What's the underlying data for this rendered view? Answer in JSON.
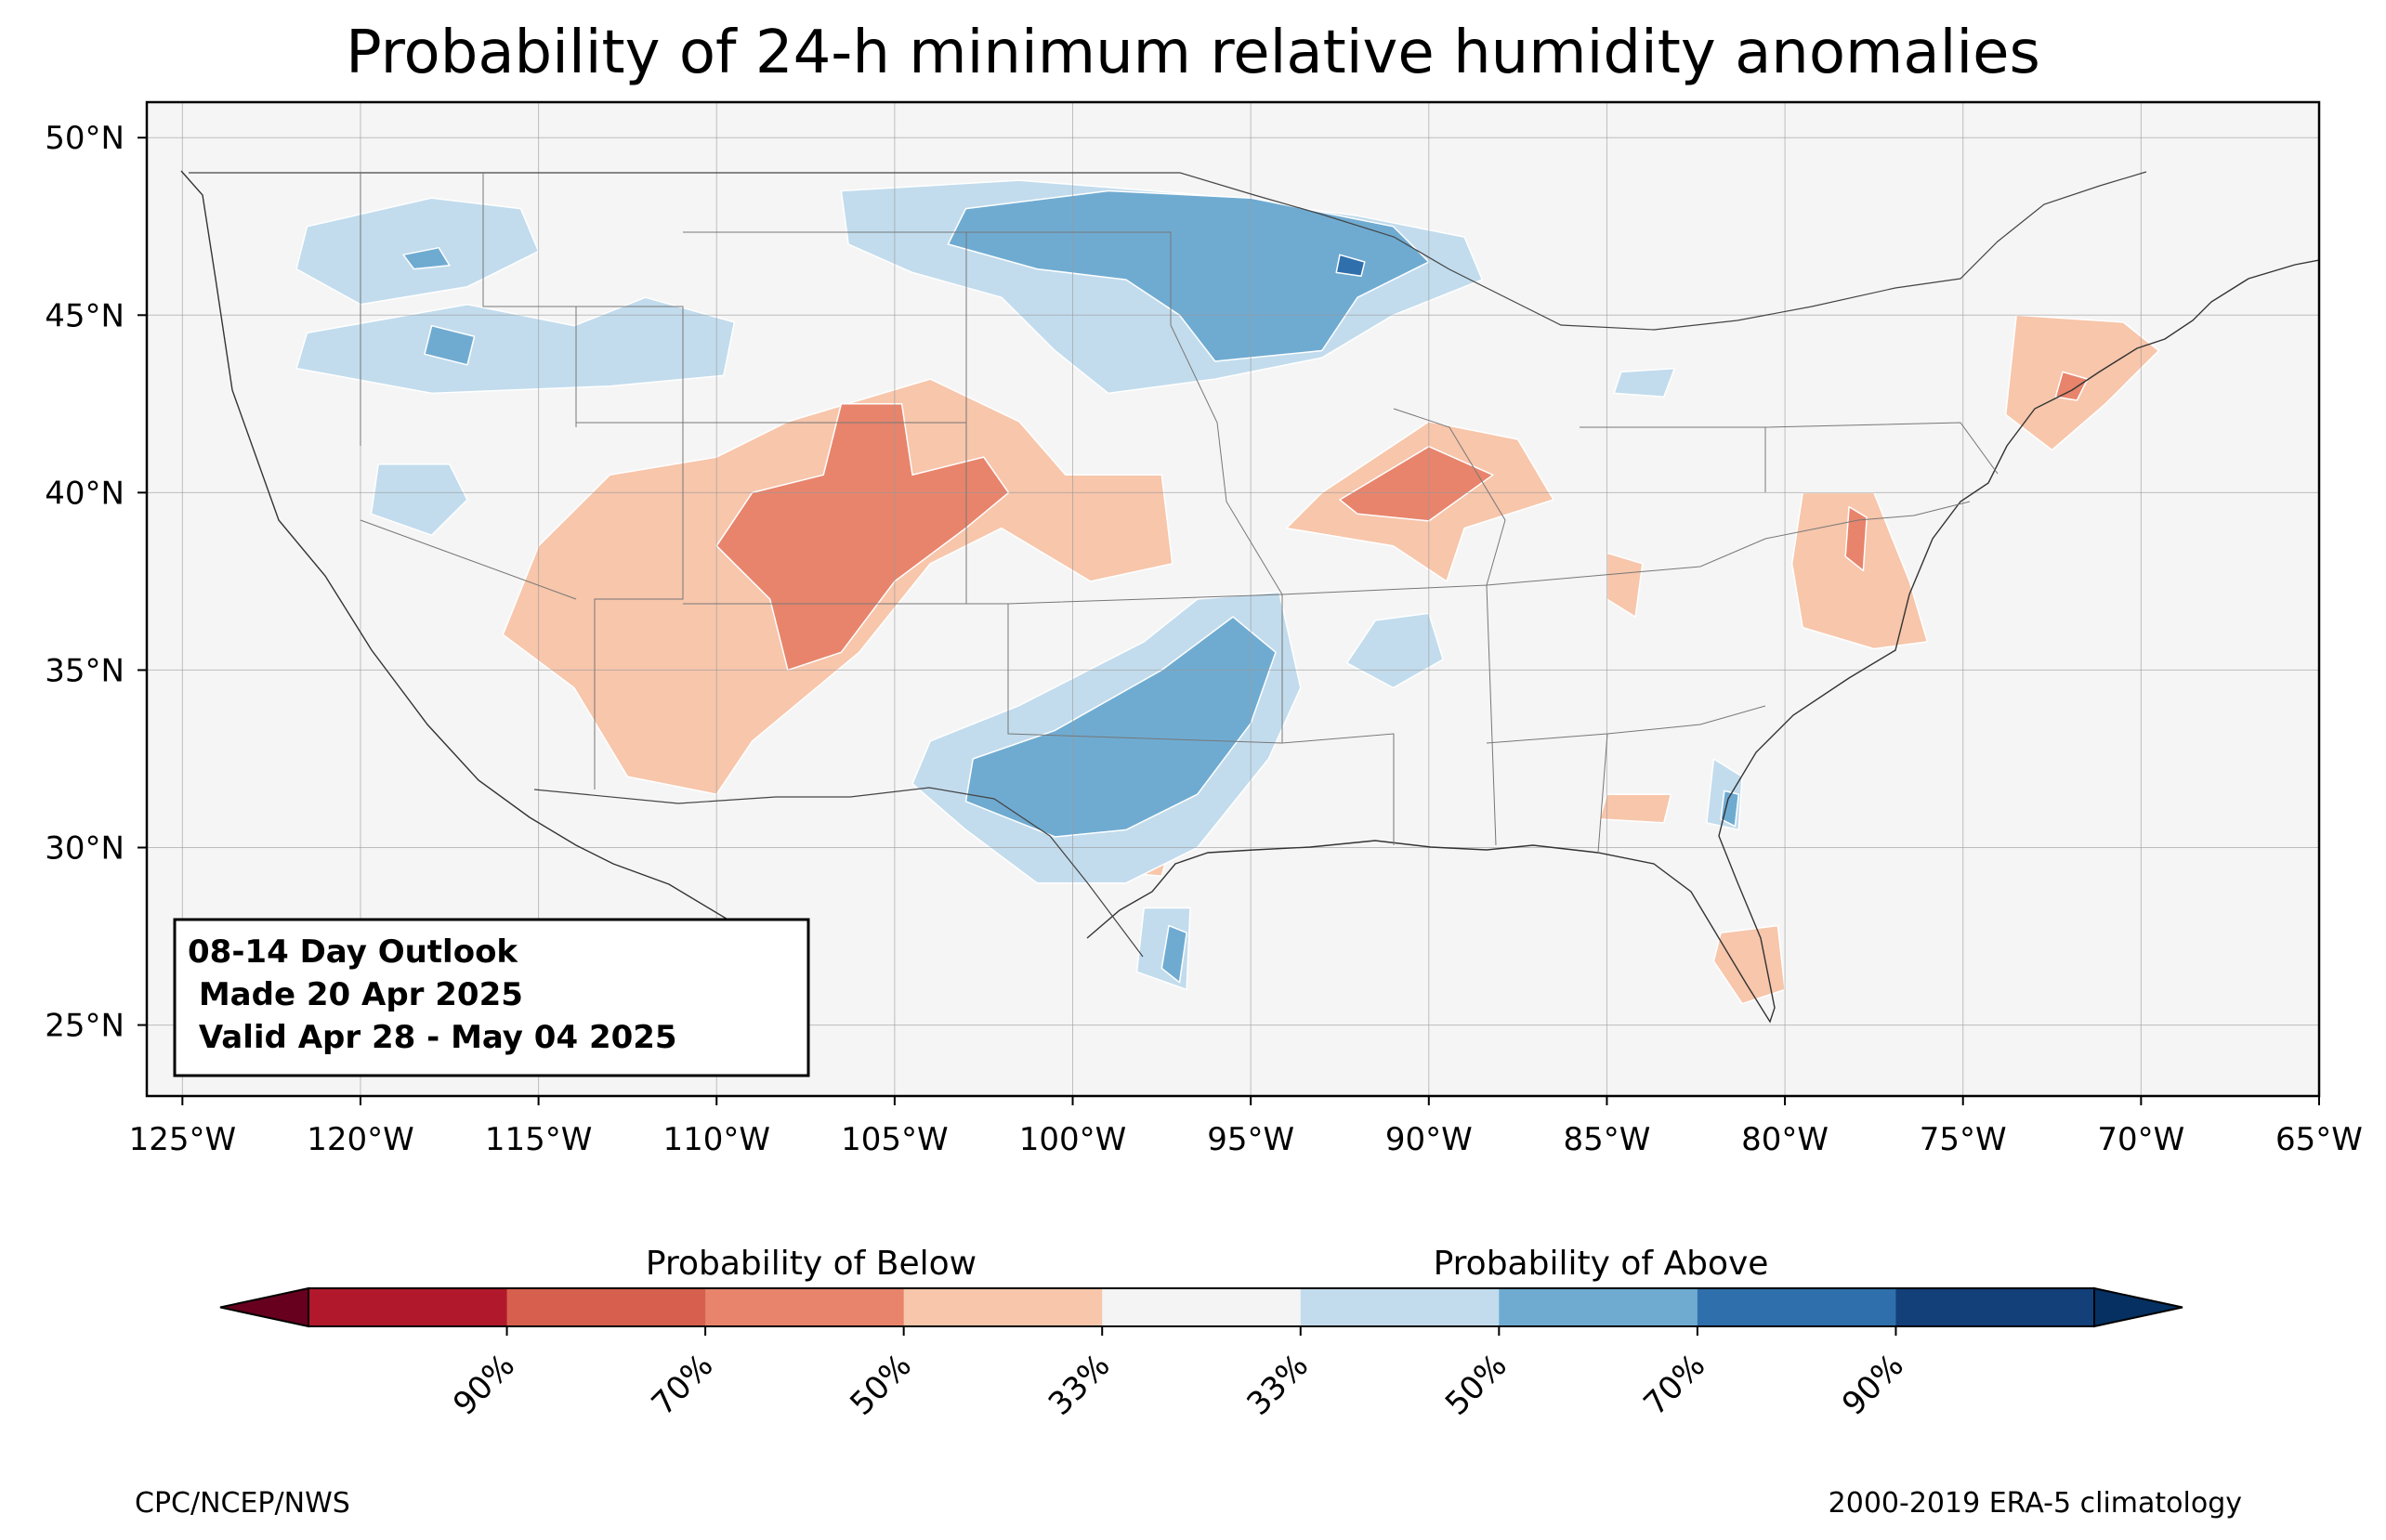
{
  "title": "Probability of 24-h minimum relative humidity anomalies",
  "map": {
    "projection": "PlateCarree",
    "extent": {
      "lon_min": -126,
      "lon_max": -65,
      "lat_min": 23,
      "lat_max": 51
    },
    "background_color": "#f5f5f5",
    "gridlines": true,
    "lat_ticks": [
      {
        "value": 50,
        "label": "50°N"
      },
      {
        "value": 45,
        "label": "45°N"
      },
      {
        "value": 40,
        "label": "40°N"
      },
      {
        "value": 35,
        "label": "35°N"
      },
      {
        "value": 30,
        "label": "30°N"
      },
      {
        "value": 25,
        "label": "25°N"
      }
    ],
    "lon_ticks": [
      {
        "value": -125,
        "label": "125°W"
      },
      {
        "value": -120,
        "label": "120°W"
      },
      {
        "value": -115,
        "label": "115°W"
      },
      {
        "value": -110,
        "label": "110°W"
      },
      {
        "value": -105,
        "label": "105°W"
      },
      {
        "value": -100,
        "label": "100°W"
      },
      {
        "value": -95,
        "label": "95°W"
      },
      {
        "value": -90,
        "label": "90°W"
      },
      {
        "value": -85,
        "label": "85°W"
      },
      {
        "value": -80,
        "label": "80°W"
      },
      {
        "value": -75,
        "label": "75°W"
      },
      {
        "value": -70,
        "label": "70°W"
      },
      {
        "value": -65,
        "label": "65°W"
      }
    ],
    "anomaly_regions": [
      {
        "category": "below-33",
        "color": "#f7c6ab",
        "ring": [
          [
            -108,
            42
          ],
          [
            -104,
            43.2
          ],
          [
            -101.5,
            42
          ],
          [
            -100.2,
            40.5
          ],
          [
            -97.5,
            40.5
          ],
          [
            -97.2,
            38
          ],
          [
            -99.5,
            37.5
          ],
          [
            -102,
            39
          ],
          [
            -104,
            38
          ],
          [
            -106,
            35.5
          ],
          [
            -109,
            33
          ],
          [
            -110,
            31.5
          ],
          [
            -112.5,
            32
          ],
          [
            -114,
            34.5
          ],
          [
            -116,
            36
          ],
          [
            -115,
            38.5
          ],
          [
            -113,
            40.5
          ],
          [
            -110,
            41
          ]
        ]
      },
      {
        "category": "below-50",
        "color": "#e8846c",
        "ring": [
          [
            -106.5,
            42.5
          ],
          [
            -104.8,
            42.5
          ],
          [
            -104.5,
            40.5
          ],
          [
            -102.5,
            41
          ],
          [
            -101.8,
            40
          ],
          [
            -103,
            39
          ],
          [
            -105,
            37.5
          ],
          [
            -106.5,
            35.5
          ],
          [
            -108,
            35
          ],
          [
            -108.5,
            37
          ],
          [
            -110,
            38.5
          ],
          [
            -109,
            40
          ],
          [
            -107,
            40.5
          ]
        ]
      },
      {
        "category": "below-33",
        "color": "#f7c6ab",
        "ring": [
          [
            -93,
            40
          ],
          [
            -90,
            42
          ],
          [
            -87.5,
            41.5
          ],
          [
            -86.5,
            39.8
          ],
          [
            -89,
            39
          ],
          [
            -89.5,
            37.5
          ],
          [
            -91,
            38.5
          ],
          [
            -94,
            39
          ]
        ]
      },
      {
        "category": "below-50",
        "color": "#e8846c",
        "ring": [
          [
            -92.5,
            39.8
          ],
          [
            -90,
            41.3
          ],
          [
            -88.2,
            40.5
          ],
          [
            -90,
            39.2
          ],
          [
            -92,
            39.4
          ]
        ]
      },
      {
        "category": "below-33",
        "color": "#f7c6ab",
        "ring": [
          [
            -73.5,
            45
          ],
          [
            -70.5,
            44.8
          ],
          [
            -69.5,
            44
          ],
          [
            -71,
            42.5
          ],
          [
            -72.5,
            41.2
          ],
          [
            -73.8,
            42.2
          ]
        ]
      },
      {
        "category": "below-50",
        "color": "#e8846c",
        "ring": [
          [
            -72.2,
            43.4
          ],
          [
            -71.5,
            43.2
          ],
          [
            -71.8,
            42.6
          ],
          [
            -72.4,
            42.7
          ]
        ]
      },
      {
        "category": "below-33",
        "color": "#f7c6ab",
        "ring": [
          [
            -79.5,
            40
          ],
          [
            -77.5,
            40
          ],
          [
            -76.5,
            37.5
          ],
          [
            -76,
            35.8
          ],
          [
            -77.5,
            35.6
          ],
          [
            -79.5,
            36.2
          ],
          [
            -79.8,
            38
          ]
        ]
      },
      {
        "category": "below-50",
        "color": "#e8846c",
        "ring": [
          [
            -78.2,
            39.6
          ],
          [
            -77.7,
            39.3
          ],
          [
            -77.8,
            37.8
          ],
          [
            -78.3,
            38.2
          ]
        ]
      },
      {
        "category": "below-33",
        "color": "#f7c6ab",
        "ring": [
          [
            -81.8,
            27.6
          ],
          [
            -80.2,
            27.8
          ],
          [
            -80,
            26
          ],
          [
            -81.2,
            25.6
          ],
          [
            -82,
            26.8
          ]
        ]
      },
      {
        "category": "below-33",
        "color": "#f7c6ab",
        "ring": [
          [
            -98.2,
            31.8
          ],
          [
            -97,
            31
          ],
          [
            -97.5,
            29.2
          ],
          [
            -98.8,
            29.3
          ],
          [
            -98.9,
            30.5
          ]
        ]
      },
      {
        "category": "below-50",
        "color": "#e8846c",
        "ring": [
          [
            -97.6,
            30.4
          ],
          [
            -97.2,
            30.1
          ],
          [
            -97.5,
            29.6
          ],
          [
            -97.9,
            29.8
          ]
        ]
      },
      {
        "category": "below-33",
        "color": "#f7c6ab",
        "ring": [
          [
            -85,
            31.5
          ],
          [
            -83.2,
            31.5
          ],
          [
            -83.4,
            30.7
          ],
          [
            -85.2,
            30.8
          ]
        ]
      },
      {
        "category": "below-33",
        "color": "#f7c6ab",
        "ring": [
          [
            -85,
            38.3
          ],
          [
            -84,
            38
          ],
          [
            -84.2,
            36.5
          ],
          [
            -85,
            37
          ]
        ]
      },
      {
        "category": "above-33",
        "color": "#c2dced",
        "ring": [
          [
            -106.5,
            48.5
          ],
          [
            -101.5,
            48.8
          ],
          [
            -96.5,
            48.4
          ],
          [
            -92,
            47.8
          ],
          [
            -89,
            47.2
          ],
          [
            -88.5,
            46
          ],
          [
            -91,
            45
          ],
          [
            -93,
            43.8
          ],
          [
            -96,
            43.2
          ],
          [
            -99,
            42.8
          ],
          [
            -100.5,
            44
          ],
          [
            -102,
            45.5
          ],
          [
            -104.5,
            46.2
          ],
          [
            -106.3,
            47
          ]
        ]
      },
      {
        "category": "above-50",
        "color": "#6fabd1",
        "ring": [
          [
            -103,
            48
          ],
          [
            -99,
            48.5
          ],
          [
            -95,
            48.3
          ],
          [
            -91,
            47.5
          ],
          [
            -90,
            46.5
          ],
          [
            -92,
            45.5
          ],
          [
            -93,
            44
          ],
          [
            -96,
            43.7
          ],
          [
            -97,
            45
          ],
          [
            -98.5,
            46
          ],
          [
            -101,
            46.3
          ],
          [
            -103.5,
            47
          ]
        ]
      },
      {
        "category": "above-70",
        "color": "#2f6fac",
        "ring": [
          [
            -92.5,
            46.7
          ],
          [
            -91.8,
            46.5
          ],
          [
            -91.9,
            46.1
          ],
          [
            -92.6,
            46.2
          ]
        ]
      },
      {
        "category": "above-33",
        "color": "#c2dced",
        "ring": [
          [
            -101.5,
            34
          ],
          [
            -98,
            35.8
          ],
          [
            -96.5,
            37
          ],
          [
            -94.2,
            37.2
          ],
          [
            -93.6,
            34.5
          ],
          [
            -94.5,
            32.5
          ],
          [
            -96.5,
            30
          ],
          [
            -98.5,
            29
          ],
          [
            -101,
            29
          ],
          [
            -103,
            30.5
          ],
          [
            -104.5,
            31.8
          ],
          [
            -104,
            33
          ]
        ]
      },
      {
        "category": "above-50",
        "color": "#6fabd1",
        "ring": [
          [
            -100.5,
            33.3
          ],
          [
            -97.5,
            35
          ],
          [
            -95.5,
            36.5
          ],
          [
            -94.3,
            35.5
          ],
          [
            -95,
            33.5
          ],
          [
            -96.5,
            31.5
          ],
          [
            -98.5,
            30.5
          ],
          [
            -100.5,
            30.3
          ],
          [
            -103,
            31.3
          ],
          [
            -102.8,
            32.5
          ]
        ]
      },
      {
        "category": "above-33",
        "color": "#c2dced",
        "ring": [
          [
            -121.5,
            47.5
          ],
          [
            -118,
            48.3
          ],
          [
            -115.5,
            48
          ],
          [
            -115,
            46.8
          ],
          [
            -117,
            45.8
          ],
          [
            -120,
            45.3
          ],
          [
            -121.8,
            46.3
          ]
        ]
      },
      {
        "category": "above-50",
        "color": "#6fabd1",
        "ring": [
          [
            -118.8,
            46.7
          ],
          [
            -117.8,
            46.9
          ],
          [
            -117.5,
            46.4
          ],
          [
            -118.5,
            46.3
          ]
        ]
      },
      {
        "category": "above-33",
        "color": "#c2dced",
        "ring": [
          [
            -121.5,
            44.5
          ],
          [
            -117,
            45.3
          ],
          [
            -114,
            44.7
          ],
          [
            -112,
            45.5
          ],
          [
            -109.5,
            44.8
          ],
          [
            -109.8,
            43.3
          ],
          [
            -113,
            43
          ],
          [
            -118,
            42.8
          ],
          [
            -121.8,
            43.5
          ]
        ]
      },
      {
        "category": "above-50",
        "color": "#6fabd1",
        "ring": [
          [
            -118,
            44.7
          ],
          [
            -116.8,
            44.4
          ],
          [
            -117,
            43.6
          ],
          [
            -118.2,
            43.9
          ]
        ]
      },
      {
        "category": "above-33",
        "color": "#c2dced",
        "ring": [
          [
            -119.5,
            40.8
          ],
          [
            -117.5,
            40.8
          ],
          [
            -117,
            39.8
          ],
          [
            -118,
            38.8
          ],
          [
            -119.7,
            39.4
          ]
        ]
      },
      {
        "category": "above-33",
        "color": "#c2dced",
        "ring": [
          [
            -82,
            32.5
          ],
          [
            -81.2,
            32
          ],
          [
            -81.3,
            30.5
          ],
          [
            -82.2,
            30.7
          ]
        ]
      },
      {
        "category": "above-50",
        "color": "#6fabd1",
        "ring": [
          [
            -81.7,
            31.6
          ],
          [
            -81.3,
            31.5
          ],
          [
            -81.4,
            30.6
          ],
          [
            -81.8,
            30.8
          ]
        ]
      },
      {
        "category": "above-33",
        "color": "#c2dced",
        "ring": [
          [
            -98,
            28.3
          ],
          [
            -96.7,
            28.3
          ],
          [
            -96.8,
            26
          ],
          [
            -98.2,
            26.5
          ]
        ]
      },
      {
        "category": "above-50",
        "color": "#6fabd1",
        "ring": [
          [
            -97.3,
            27.8
          ],
          [
            -96.8,
            27.6
          ],
          [
            -97,
            26.2
          ],
          [
            -97.5,
            26.6
          ]
        ]
      },
      {
        "category": "above-33",
        "color": "#c2dced",
        "ring": [
          [
            -91.5,
            36.4
          ],
          [
            -90,
            36.6
          ],
          [
            -89.6,
            35.3
          ],
          [
            -91,
            34.5
          ],
          [
            -92.3,
            35.2
          ]
        ]
      },
      {
        "category": "above-33",
        "color": "#c2dced",
        "ring": [
          [
            -84.6,
            43.4
          ],
          [
            -83.1,
            43.5
          ],
          [
            -83.4,
            42.7
          ],
          [
            -84.8,
            42.8
          ]
        ]
      }
    ]
  },
  "info_box": {
    "line1": "08-14 Day Outlook",
    "line2": " Made 20 Apr 2025",
    "line3": " Valid Apr 28 - May 04 2025"
  },
  "colorbar": {
    "below_label": "Probability of Below",
    "above_label": "Probability of Above",
    "colors": [
      "#67001f",
      "#b2182b",
      "#d6604d",
      "#e8846c",
      "#f7c6ab",
      "#f4f4f4",
      "#c2dced",
      "#6fabd1",
      "#2f6fac",
      "#14407a",
      "#053061"
    ],
    "tick_labels": [
      "90%",
      "70%",
      "50%",
      "33%",
      "33%",
      "50%",
      "70%",
      "90%"
    ]
  },
  "footer": {
    "left": "CPC/NCEP/NWS",
    "right": "2000-2019 ERA-5 climatology"
  }
}
